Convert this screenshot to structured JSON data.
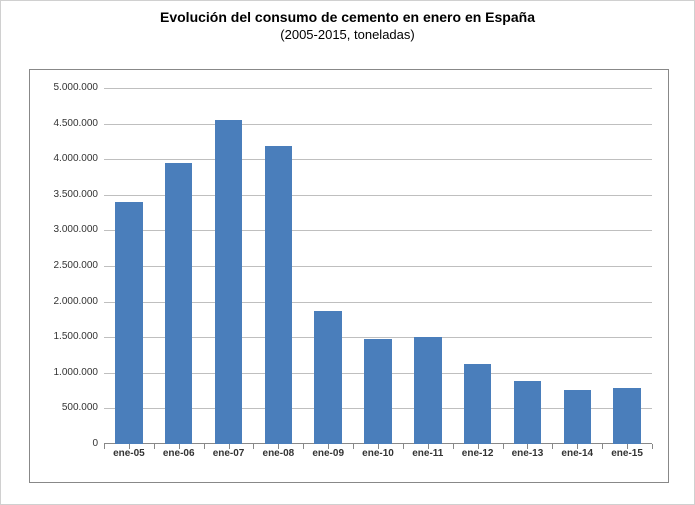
{
  "title": "Evolución del consumo de cemento en enero en España",
  "subtitle": "(2005-2015, toneladas)",
  "chart": {
    "type": "bar",
    "categories": [
      "ene-05",
      "ene-06",
      "ene-07",
      "ene-08",
      "ene-09",
      "ene-10",
      "ene-11",
      "ene-12",
      "ene-13",
      "ene-14",
      "ene-15"
    ],
    "values": [
      3400000,
      3950000,
      4550000,
      4180000,
      1870000,
      1480000,
      1500000,
      1120000,
      880000,
      760000,
      780000
    ],
    "bar_color": "#4a7ebb",
    "ylim": [
      0,
      5000000
    ],
    "ytick_step": 500000,
    "ytick_labels": [
      "0",
      "500.000",
      "1.000.000",
      "1.500.000",
      "2.000.000",
      "2.500.000",
      "3.000.000",
      "3.500.000",
      "4.000.000",
      "4.500.000",
      "5.000.000"
    ],
    "grid_color": "#bfbfbf",
    "axis_color": "#888888",
    "background_color": "#ffffff",
    "tick_label_fontsize": 10,
    "title_fontsize": 14,
    "subtitle_fontsize": 13,
    "bar_width_ratio": 0.55
  }
}
